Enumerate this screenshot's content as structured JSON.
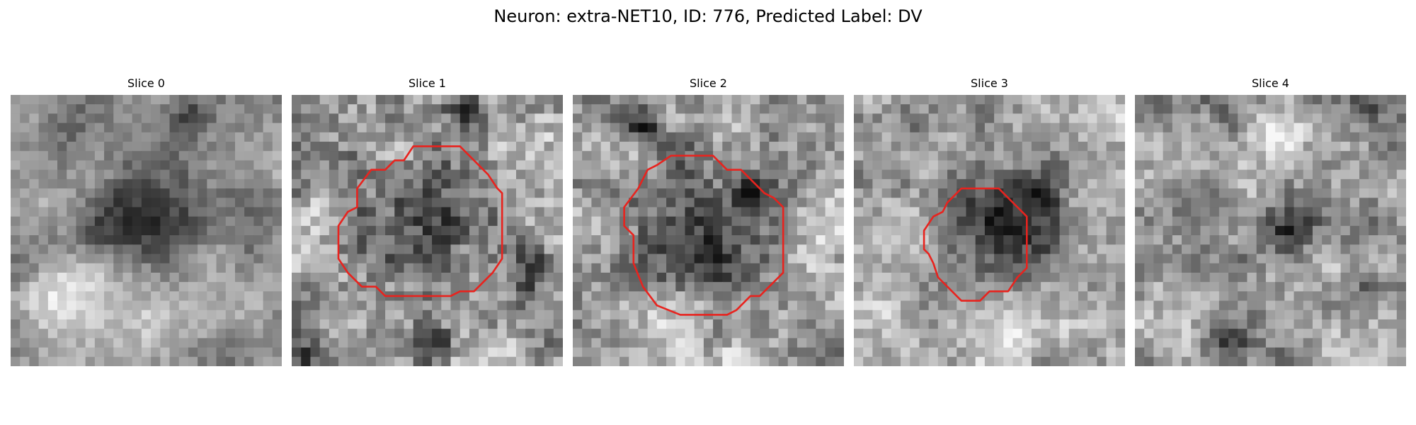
{
  "figure": {
    "title": "Neuron: extra-NET10, ID: 776, Predicted Label: DV",
    "contour_color": "#e8231e"
  },
  "panels": [
    {
      "title": "Slice 0",
      "has_contour": false
    },
    {
      "title": "Slice 1",
      "has_contour": true
    },
    {
      "title": "Slice 2",
      "has_contour": true
    },
    {
      "title": "Slice 3",
      "has_contour": true
    },
    {
      "title": "Slice 4",
      "has_contour": false
    }
  ]
}
